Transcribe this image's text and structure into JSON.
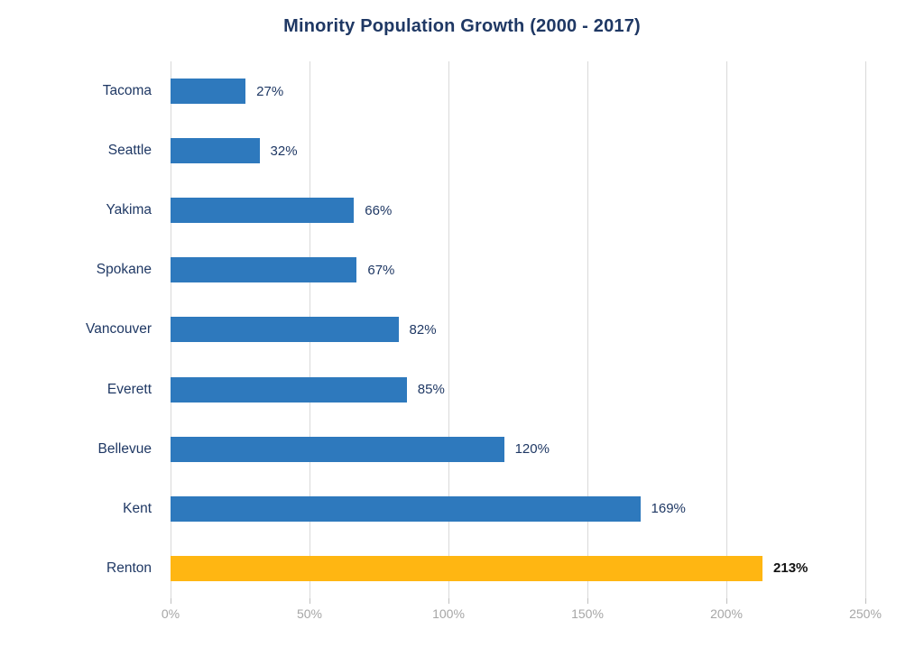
{
  "chart_data": {
    "type": "bar",
    "orientation": "horizontal",
    "title": "Minority Population Growth (2000 - 2017)",
    "categories": [
      "Tacoma",
      "Seattle",
      "Yakima",
      "Spokane",
      "Vancouver",
      "Everett",
      "Bellevue",
      "Kent",
      "Renton"
    ],
    "values": [
      27,
      32,
      66,
      67,
      82,
      85,
      120,
      169,
      213
    ],
    "value_labels": [
      "27%",
      "32%",
      "66%",
      "67%",
      "82%",
      "85%",
      "120%",
      "169%",
      "213%"
    ],
    "highlight_category": "Renton",
    "xlabel": "",
    "ylabel": "",
    "xlim": [
      0,
      250
    ],
    "xtick_values": [
      0,
      50,
      100,
      150,
      200,
      250
    ],
    "xtick_labels": [
      "0%",
      "50%",
      "100%",
      "150%",
      "200%",
      "250%"
    ],
    "grid": true,
    "legend": false,
    "colors": {
      "bar": "#2E79BD",
      "highlight_bar": "#FFB612",
      "title": "#1F3864",
      "category_label": "#1F3864",
      "value_label": "#1F3864",
      "highlight_value_label": "#121212",
      "tick_label": "#A6A6A6",
      "gridline": "#D9D9D9",
      "axis_tick": "#BFBFBF",
      "background": "#FFFFFF"
    }
  }
}
